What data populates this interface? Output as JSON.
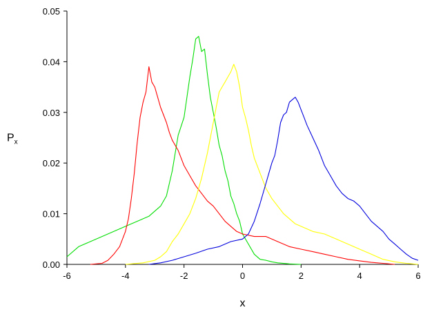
{
  "chart_data": {
    "type": "line",
    "title": "",
    "xlabel": "x",
    "ylabel": "P",
    "ylabel_subscript": "x",
    "xlim": [
      -6,
      6
    ],
    "ylim": [
      0,
      0.05
    ],
    "xticks": [
      -6,
      -4,
      -2,
      0,
      2,
      4,
      6
    ],
    "xtick_labels": [
      "-6",
      "-4",
      "-2",
      "0",
      "2",
      "4",
      "6"
    ],
    "yticks": [
      0,
      0.01,
      0.02,
      0.03,
      0.04,
      0.05
    ],
    "ytick_labels": [
      "0.00",
      "0.01",
      "0.02",
      "0.03",
      "0.04",
      "0.05"
    ],
    "grid": false,
    "legend": "none",
    "series": [
      {
        "color": "#00dd00",
        "x": [
          -6.0,
          -5.6,
          -5.2,
          -4.8,
          -4.4,
          -4.0,
          -3.6,
          -3.2,
          -2.8,
          -2.6,
          -2.4,
          -2.2,
          -2.0,
          -1.9,
          -1.8,
          -1.7,
          -1.6,
          -1.5,
          -1.4,
          -1.3,
          -1.2,
          -1.1,
          -1.0,
          -0.9,
          -0.8,
          -0.7,
          -0.6,
          -0.5,
          -0.4,
          -0.3,
          -0.2,
          -0.1,
          0.0,
          0.2,
          0.4,
          0.6,
          0.8,
          1.0,
          1.2,
          1.6,
          2.0
        ],
        "y": [
          0.0015,
          0.0035,
          0.0045,
          0.0055,
          0.0065,
          0.0075,
          0.0085,
          0.0095,
          0.0115,
          0.0135,
          0.0185,
          0.0255,
          0.029,
          0.033,
          0.037,
          0.0405,
          0.0445,
          0.045,
          0.042,
          0.0425,
          0.0375,
          0.033,
          0.03,
          0.027,
          0.0235,
          0.0215,
          0.0185,
          0.0165,
          0.0135,
          0.012,
          0.01,
          0.0085,
          0.006,
          0.004,
          0.002,
          0.001,
          0.0008,
          0.0005,
          0.0003,
          0.0001,
          0.0
        ]
      },
      {
        "color": "#ff0000",
        "x": [
          -5.2,
          -4.8,
          -4.6,
          -4.4,
          -4.2,
          -4.0,
          -3.9,
          -3.8,
          -3.7,
          -3.6,
          -3.5,
          -3.4,
          -3.3,
          -3.2,
          -3.1,
          -3.0,
          -2.9,
          -2.8,
          -2.7,
          -2.6,
          -2.5,
          -2.4,
          -2.2,
          -2.0,
          -1.8,
          -1.6,
          -1.4,
          -1.2,
          -1.0,
          -0.8,
          -0.6,
          -0.4,
          -0.2,
          0.0,
          0.4,
          0.8,
          1.2,
          1.6,
          2.0,
          2.4,
          2.8,
          3.2,
          3.6,
          4.0,
          4.4,
          4.8,
          5.2
        ],
        "y": [
          0.0,
          0.0002,
          0.0008,
          0.002,
          0.0035,
          0.0065,
          0.009,
          0.013,
          0.018,
          0.024,
          0.029,
          0.032,
          0.034,
          0.039,
          0.036,
          0.035,
          0.033,
          0.031,
          0.0295,
          0.028,
          0.026,
          0.0245,
          0.0225,
          0.0195,
          0.0175,
          0.0155,
          0.014,
          0.0125,
          0.0115,
          0.01,
          0.0085,
          0.0075,
          0.0065,
          0.006,
          0.0055,
          0.0055,
          0.0045,
          0.0035,
          0.003,
          0.0025,
          0.002,
          0.0015,
          0.001,
          0.0007,
          0.0004,
          0.0002,
          0.0
        ]
      },
      {
        "color": "#ffff00",
        "x": [
          -4.0,
          -3.4,
          -3.0,
          -2.8,
          -2.6,
          -2.4,
          -2.2,
          -2.0,
          -1.8,
          -1.6,
          -1.4,
          -1.2,
          -1.0,
          -0.9,
          -0.8,
          -0.7,
          -0.6,
          -0.5,
          -0.4,
          -0.3,
          -0.2,
          -0.1,
          0.0,
          0.1,
          0.2,
          0.3,
          0.4,
          0.5,
          0.6,
          0.8,
          1.0,
          1.2,
          1.4,
          1.6,
          1.8,
          2.0,
          2.4,
          2.8,
          3.2,
          3.6,
          4.0,
          4.4,
          4.8,
          5.2,
          5.6,
          6.0
        ],
        "y": [
          0.0,
          0.0003,
          0.0008,
          0.0015,
          0.0025,
          0.0045,
          0.006,
          0.008,
          0.01,
          0.013,
          0.017,
          0.022,
          0.028,
          0.031,
          0.034,
          0.035,
          0.036,
          0.037,
          0.038,
          0.0395,
          0.038,
          0.035,
          0.031,
          0.029,
          0.0265,
          0.0235,
          0.021,
          0.0195,
          0.018,
          0.015,
          0.013,
          0.0115,
          0.01,
          0.009,
          0.008,
          0.0075,
          0.0065,
          0.006,
          0.005,
          0.004,
          0.003,
          0.002,
          0.001,
          0.0005,
          0.0002,
          0.0
        ]
      },
      {
        "color": "#0000dd",
        "x": [
          -3.2,
          -2.8,
          -2.4,
          -2.0,
          -1.6,
          -1.2,
          -0.8,
          -0.4,
          0.0,
          0.2,
          0.4,
          0.6,
          0.8,
          1.0,
          1.1,
          1.2,
          1.3,
          1.4,
          1.5,
          1.6,
          1.7,
          1.8,
          1.9,
          2.0,
          2.1,
          2.2,
          2.4,
          2.6,
          2.8,
          3.0,
          3.2,
          3.4,
          3.6,
          3.8,
          4.0,
          4.2,
          4.4,
          4.6,
          4.8,
          5.0,
          5.2,
          5.4,
          5.6,
          5.8,
          6.0
        ],
        "y": [
          0.0,
          0.0003,
          0.0008,
          0.0015,
          0.0022,
          0.003,
          0.0035,
          0.0045,
          0.005,
          0.006,
          0.0085,
          0.012,
          0.016,
          0.02,
          0.0215,
          0.0245,
          0.028,
          0.0295,
          0.03,
          0.032,
          0.0325,
          0.033,
          0.032,
          0.0305,
          0.029,
          0.0275,
          0.025,
          0.0225,
          0.0195,
          0.0175,
          0.0155,
          0.014,
          0.013,
          0.0125,
          0.0115,
          0.01,
          0.0085,
          0.0075,
          0.0065,
          0.005,
          0.004,
          0.003,
          0.002,
          0.0012,
          0.0008
        ]
      }
    ]
  }
}
